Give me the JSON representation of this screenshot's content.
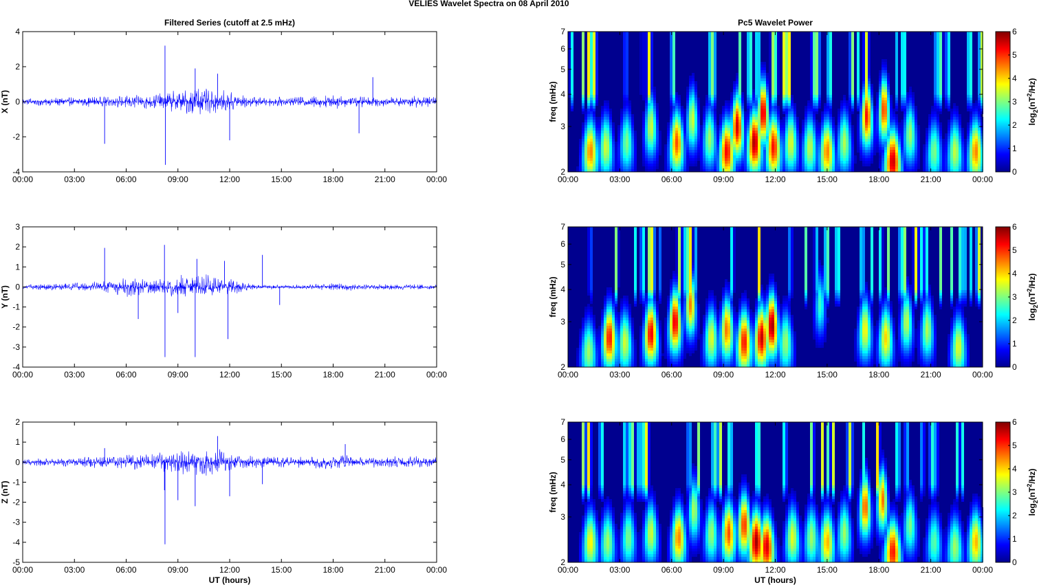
{
  "figure": {
    "title": "VELIES Wavelet Spectra on 08 April      2010"
  },
  "chart_data": [
    {
      "type": "line",
      "title": "Filtered Series (cutoff at 2.5 mHz)",
      "ylabel": "X (nT)",
      "xlabel": "",
      "xlim": [
        0,
        24
      ],
      "ylim": [
        -4,
        4
      ],
      "x_ticks": [
        "00:00",
        "03:00",
        "06:00",
        "09:00",
        "12:00",
        "15:00",
        "18:00",
        "21:00",
        "00:00"
      ],
      "y_ticks": [
        "-4",
        "-2",
        "0",
        "2",
        "4"
      ],
      "y_tick_values": [
        -4,
        -2,
        0,
        2,
        4
      ],
      "series": [
        {
          "color": "#0000ff",
          "envelope": {
            "hours": [
              0,
              1,
              2,
              3,
              4,
              5,
              6,
              7,
              8,
              9,
              10,
              11,
              12,
              13,
              14,
              15,
              16,
              17,
              18,
              19,
              20,
              21,
              22,
              23,
              24
            ],
            "amplitude": [
              0.25,
              0.25,
              0.25,
              0.3,
              0.3,
              0.3,
              0.4,
              0.45,
              0.5,
              0.7,
              0.9,
              0.8,
              0.6,
              0.35,
              0.25,
              0.3,
              0.3,
              0.4,
              0.45,
              0.4,
              0.3,
              0.3,
              0.3,
              0.35,
              0.3
            ]
          },
          "spikes": [
            {
              "x": 4.75,
              "y": -2.4
            },
            {
              "x": 8.25,
              "y": 3.2
            },
            {
              "x": 8.27,
              "y": -3.6
            },
            {
              "x": 10.0,
              "y": 1.9
            },
            {
              "x": 11.3,
              "y": 1.6
            },
            {
              "x": 12.0,
              "y": -2.2
            },
            {
              "x": 19.5,
              "y": -1.8
            },
            {
              "x": 20.3,
              "y": 1.4
            }
          ]
        }
      ]
    },
    {
      "type": "heatmap",
      "title": "Pc5 Wavelet Power",
      "ylabel": "freq (mHz)",
      "xlabel": "",
      "xlim": [
        0,
        24
      ],
      "ylim": [
        2,
        7
      ],
      "yscale": "log",
      "x_ticks": [
        "00:00",
        "03:00",
        "06:00",
        "09:00",
        "12:00",
        "15:00",
        "18:00",
        "21:00",
        "00:00"
      ],
      "y_ticks": [
        "2",
        "3",
        "4",
        "5",
        "6",
        "7"
      ],
      "y_tick_values": [
        2,
        3,
        4,
        5,
        6,
        7
      ],
      "colorbar": {
        "label_main": "log",
        "label_sub": "2",
        "label_rest": "(nT",
        "label_sup": "2",
        "label_end": "/Hz)",
        "range": [
          0,
          6
        ],
        "ticks": [
          "0",
          "1",
          "2",
          "3",
          "4",
          "5",
          "6"
        ]
      },
      "blobs": [
        {
          "x": 1.3,
          "f": 2.4,
          "p": 4.5
        },
        {
          "x": 2.2,
          "f": 2.5,
          "p": 3.5
        },
        {
          "x": 3.4,
          "f": 2.6,
          "p": 3
        },
        {
          "x": 4.8,
          "f": 3.0,
          "p": 3.5
        },
        {
          "x": 6.3,
          "f": 2.6,
          "p": 4.8
        },
        {
          "x": 7.2,
          "f": 3.2,
          "p": 3.5
        },
        {
          "x": 8.2,
          "f": 2.7,
          "p": 3.2
        },
        {
          "x": 9.2,
          "f": 2.4,
          "p": 5.3
        },
        {
          "x": 9.8,
          "f": 3.0,
          "p": 5.5
        },
        {
          "x": 10.8,
          "f": 2.6,
          "p": 5.8
        },
        {
          "x": 11.3,
          "f": 3.4,
          "p": 5.6
        },
        {
          "x": 11.9,
          "f": 2.5,
          "p": 5.2
        },
        {
          "x": 12.9,
          "f": 2.6,
          "p": 3.6
        },
        {
          "x": 14.0,
          "f": 2.5,
          "p": 3.4
        },
        {
          "x": 15.0,
          "f": 2.4,
          "p": 4.5
        },
        {
          "x": 16.0,
          "f": 2.6,
          "p": 3.3
        },
        {
          "x": 17.3,
          "f": 3.3,
          "p": 5.2
        },
        {
          "x": 18.3,
          "f": 3.5,
          "p": 5.0
        },
        {
          "x": 18.8,
          "f": 2.2,
          "p": 5.6
        },
        {
          "x": 19.8,
          "f": 2.8,
          "p": 3.2
        },
        {
          "x": 21.2,
          "f": 2.4,
          "p": 3.0
        },
        {
          "x": 22.4,
          "f": 2.4,
          "p": 3.4
        },
        {
          "x": 23.6,
          "f": 2.4,
          "p": 4.5
        }
      ]
    },
    {
      "type": "line",
      "title": "",
      "ylabel": "Y (nT)",
      "xlabel": "",
      "xlim": [
        0,
        24
      ],
      "ylim": [
        -4,
        3
      ],
      "x_ticks": [
        "00:00",
        "03:00",
        "06:00",
        "09:00",
        "12:00",
        "15:00",
        "18:00",
        "21:00",
        "00:00"
      ],
      "y_ticks": [
        "-4",
        "-3",
        "-2",
        "-1",
        "0",
        "1",
        "2",
        "3"
      ],
      "y_tick_values": [
        -4,
        -3,
        -2,
        -1,
        0,
        1,
        2,
        3
      ],
      "series": [
        {
          "color": "#0000ff",
          "envelope": {
            "hours": [
              0,
              1,
              2,
              3,
              4,
              5,
              6,
              7,
              8,
              9,
              10,
              11,
              12,
              13,
              14,
              15,
              16,
              17,
              18,
              19,
              20,
              21,
              22,
              23,
              24
            ],
            "amplitude": [
              0.12,
              0.15,
              0.2,
              0.25,
              0.25,
              0.4,
              0.5,
              0.45,
              0.45,
              0.6,
              0.7,
              0.6,
              0.45,
              0.25,
              0.12,
              0.1,
              0.12,
              0.15,
              0.2,
              0.2,
              0.15,
              0.15,
              0.15,
              0.15,
              0.12
            ]
          },
          "spikes": [
            {
              "x": 4.75,
              "y": 1.95
            },
            {
              "x": 6.7,
              "y": -1.6
            },
            {
              "x": 8.22,
              "y": 2.1
            },
            {
              "x": 8.25,
              "y": -3.5
            },
            {
              "x": 9.0,
              "y": -1.3
            },
            {
              "x": 10.0,
              "y": -3.5
            },
            {
              "x": 10.1,
              "y": 1.4
            },
            {
              "x": 11.9,
              "y": -2.6
            },
            {
              "x": 11.7,
              "y": 1.3
            },
            {
              "x": 13.9,
              "y": 1.6
            },
            {
              "x": 14.9,
              "y": -0.9
            }
          ]
        }
      ]
    },
    {
      "type": "heatmap",
      "title": "",
      "ylabel": "freq (mHz)",
      "xlabel": "",
      "xlim": [
        0,
        24
      ],
      "ylim": [
        2,
        7
      ],
      "yscale": "log",
      "x_ticks": [
        "00:00",
        "03:00",
        "06:00",
        "09:00",
        "12:00",
        "15:00",
        "18:00",
        "21:00",
        "00:00"
      ],
      "y_ticks": [
        "2",
        "3",
        "4",
        "5",
        "6",
        "7"
      ],
      "y_tick_values": [
        2,
        3,
        4,
        5,
        6,
        7
      ],
      "colorbar": {
        "label_main": "log",
        "label_sub": "2",
        "label_rest": "(nT",
        "label_sup": "2",
        "label_end": "/Hz)",
        "range": [
          0,
          6
        ],
        "ticks": [
          "0",
          "1",
          "2",
          "3",
          "4",
          "5",
          "6"
        ]
      },
      "blobs": [
        {
          "x": 1.2,
          "f": 2.3,
          "p": 3.2
        },
        {
          "x": 2.4,
          "f": 2.6,
          "p": 5.2
        },
        {
          "x": 3.3,
          "f": 2.5,
          "p": 3.5
        },
        {
          "x": 4.8,
          "f": 2.7,
          "p": 5.4
        },
        {
          "x": 6.2,
          "f": 3.0,
          "p": 5.5
        },
        {
          "x": 7.1,
          "f": 3.5,
          "p": 4.5
        },
        {
          "x": 8.3,
          "f": 2.6,
          "p": 3.6
        },
        {
          "x": 9.2,
          "f": 2.8,
          "p": 4.6
        },
        {
          "x": 10.2,
          "f": 2.5,
          "p": 5.2
        },
        {
          "x": 11.2,
          "f": 2.6,
          "p": 5.6
        },
        {
          "x": 11.8,
          "f": 2.9,
          "p": 5.9
        },
        {
          "x": 12.6,
          "f": 2.5,
          "p": 3.2
        },
        {
          "x": 14.6,
          "f": 3.5,
          "p": 2.6
        },
        {
          "x": 17.2,
          "f": 2.8,
          "p": 3.8
        },
        {
          "x": 18.4,
          "f": 2.6,
          "p": 4.0
        },
        {
          "x": 19.6,
          "f": 3.0,
          "p": 3.4
        },
        {
          "x": 20.8,
          "f": 2.8,
          "p": 3.3
        },
        {
          "x": 22.6,
          "f": 2.4,
          "p": 3.6
        }
      ]
    },
    {
      "type": "line",
      "title": "",
      "ylabel": "Z (nT)",
      "xlabel": "UT (hours)",
      "xlim": [
        0,
        24
      ],
      "ylim": [
        -5,
        2
      ],
      "x_ticks": [
        "00:00",
        "03:00",
        "06:00",
        "09:00",
        "12:00",
        "15:00",
        "18:00",
        "21:00",
        "00:00"
      ],
      "y_ticks": [
        "-5",
        "-4",
        "-3",
        "-2",
        "-1",
        "0",
        "1",
        "2"
      ],
      "y_tick_values": [
        -5,
        -4,
        -3,
        -2,
        -1,
        0,
        1,
        2
      ],
      "series": [
        {
          "color": "#0000ff",
          "envelope": {
            "hours": [
              0,
              1,
              2,
              3,
              4,
              5,
              6,
              7,
              8,
              9,
              10,
              11,
              12,
              13,
              14,
              15,
              16,
              17,
              18,
              19,
              20,
              21,
              22,
              23,
              24
            ],
            "amplitude": [
              0.15,
              0.2,
              0.2,
              0.25,
              0.3,
              0.3,
              0.4,
              0.45,
              0.5,
              0.6,
              0.7,
              0.75,
              0.55,
              0.35,
              0.3,
              0.3,
              0.3,
              0.35,
              0.4,
              0.35,
              0.3,
              0.3,
              0.3,
              0.3,
              0.25
            ]
          },
          "spikes": [
            {
              "x": 4.75,
              "y": 0.7
            },
            {
              "x": 8.25,
              "y": -4.1
            },
            {
              "x": 8.22,
              "y": -1.4
            },
            {
              "x": 9.0,
              "y": -1.9
            },
            {
              "x": 10.0,
              "y": -2.2
            },
            {
              "x": 11.3,
              "y": 1.3
            },
            {
              "x": 12.0,
              "y": -1.7
            },
            {
              "x": 13.9,
              "y": -1.1
            },
            {
              "x": 18.7,
              "y": 0.9
            }
          ]
        }
      ]
    },
    {
      "type": "heatmap",
      "title": "",
      "ylabel": "freq (mHz)",
      "xlabel": "UT (hours)",
      "xlim": [
        0,
        24
      ],
      "ylim": [
        2,
        7
      ],
      "yscale": "log",
      "x_ticks": [
        "00:00",
        "03:00",
        "06:00",
        "09:00",
        "12:00",
        "15:00",
        "18:00",
        "21:00",
        "00:00"
      ],
      "y_ticks": [
        "2",
        "3",
        "4",
        "5",
        "6",
        "7"
      ],
      "y_tick_values": [
        2,
        3,
        4,
        5,
        6,
        7
      ],
      "colorbar": {
        "label_main": "log",
        "label_sub": "2",
        "label_rest": "(nT",
        "label_sup": "2",
        "label_end": "/Hz)",
        "range": [
          0,
          6
        ],
        "ticks": [
          "0",
          "1",
          "2",
          "3",
          "4",
          "5",
          "6"
        ]
      },
      "blobs": [
        {
          "x": 1.3,
          "f": 2.4,
          "p": 3.8
        },
        {
          "x": 2.3,
          "f": 2.4,
          "p": 3.2
        },
        {
          "x": 3.5,
          "f": 2.5,
          "p": 3.0
        },
        {
          "x": 4.8,
          "f": 2.6,
          "p": 3.5
        },
        {
          "x": 6.4,
          "f": 2.5,
          "p": 4.5
        },
        {
          "x": 7.3,
          "f": 3.2,
          "p": 3.3
        },
        {
          "x": 8.3,
          "f": 2.6,
          "p": 3.2
        },
        {
          "x": 9.3,
          "f": 2.6,
          "p": 4.8
        },
        {
          "x": 10.2,
          "f": 2.8,
          "p": 5.0
        },
        {
          "x": 10.9,
          "f": 2.4,
          "p": 5.8
        },
        {
          "x": 11.5,
          "f": 2.3,
          "p": 5.5
        },
        {
          "x": 13.0,
          "f": 2.5,
          "p": 3.6
        },
        {
          "x": 14.1,
          "f": 2.5,
          "p": 3.2
        },
        {
          "x": 15.0,
          "f": 2.4,
          "p": 4.2
        },
        {
          "x": 16.0,
          "f": 2.6,
          "p": 3.2
        },
        {
          "x": 17.2,
          "f": 3.3,
          "p": 4.8
        },
        {
          "x": 18.2,
          "f": 3.5,
          "p": 4.6
        },
        {
          "x": 18.8,
          "f": 2.2,
          "p": 5.2
        },
        {
          "x": 19.8,
          "f": 2.8,
          "p": 3.0
        },
        {
          "x": 21.2,
          "f": 2.4,
          "p": 2.8
        },
        {
          "x": 22.4,
          "f": 2.3,
          "p": 3.2
        },
        {
          "x": 23.6,
          "f": 2.4,
          "p": 4.2
        }
      ]
    }
  ]
}
